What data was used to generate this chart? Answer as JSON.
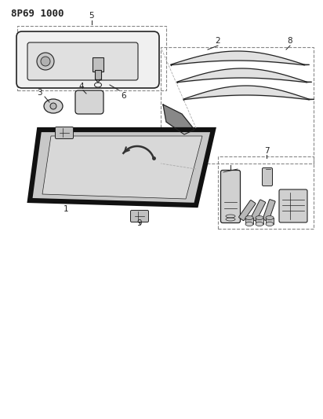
{
  "title": "8P69 1000",
  "bg_color": "#ffffff",
  "line_color": "#222222",
  "title_fontsize": 9,
  "label_fontsize": 7.5
}
